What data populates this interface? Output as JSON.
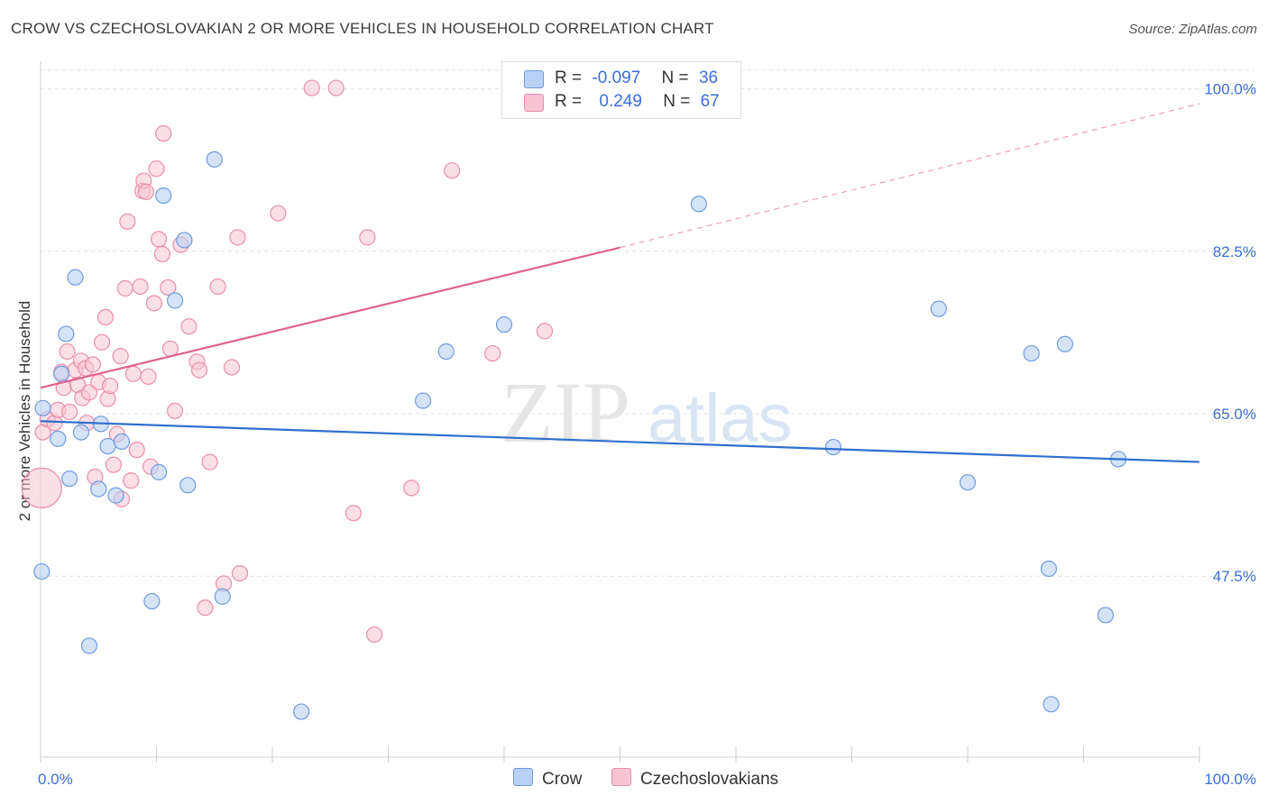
{
  "title": "CROW VS CZECHOSLOVAKIAN 2 OR MORE VEHICLES IN HOUSEHOLD CORRELATION CHART",
  "source": "Source: ZipAtlas.com",
  "watermark": {
    "zip": "ZIP",
    "atlas": "atlas"
  },
  "legend": {
    "rows": [
      {
        "r_label": "R =",
        "r_value": "-0.097",
        "n_label": "N =",
        "n_value": "36"
      },
      {
        "r_label": "R =",
        "r_value": "0.249",
        "n_label": "N =",
        "n_value": "67"
      }
    ]
  },
  "bottom_legend": {
    "crow": "Crow",
    "czech": "Czechoslovakians"
  },
  "colors": {
    "crow_fill": "#b9d1f4",
    "crow_stroke": "#6f9be0",
    "crow_line": "#2f6fcd",
    "czech_fill": "#f7c4d4",
    "czech_stroke": "#ea8fac",
    "czech_line": "#e0628d",
    "axis_text": "#3a6fd8",
    "grid": "#e3e3e3"
  },
  "chart_data": {
    "type": "scatter",
    "title": "CROW VS CZECHOSLOVAKIAN 2 OR MORE VEHICLES IN HOUSEHOLD CORRELATION CHART",
    "xlabel": "",
    "ylabel": "2 or more Vehicles in Household",
    "xlim": [
      0,
      100
    ],
    "ylim": [
      28.0,
      102.0
    ],
    "x_tick_labels": [
      "0.0%",
      "100.0%"
    ],
    "y_ticks": [
      47.5,
      65.0,
      82.5,
      100.0
    ],
    "y_tick_labels": [
      "47.5%",
      "65.0%",
      "82.5%",
      "100.0%"
    ],
    "series": [
      {
        "name": "Crow",
        "R": -0.097,
        "N": 36,
        "trend": {
          "x0": 0,
          "y0": 64.2,
          "x1": 100,
          "y1": 59.8
        },
        "points": [
          {
            "x": 0.1,
            "y": 48.0
          },
          {
            "x": 0.2,
            "y": 65.6
          },
          {
            "x": 1.5,
            "y": 62.3
          },
          {
            "x": 1.8,
            "y": 69.3
          },
          {
            "x": 2.2,
            "y": 73.6
          },
          {
            "x": 2.5,
            "y": 58.0
          },
          {
            "x": 3.0,
            "y": 79.7
          },
          {
            "x": 3.5,
            "y": 63.0
          },
          {
            "x": 4.2,
            "y": 40.0
          },
          {
            "x": 5.0,
            "y": 56.9
          },
          {
            "x": 5.2,
            "y": 63.9
          },
          {
            "x": 5.8,
            "y": 61.5
          },
          {
            "x": 6.5,
            "y": 56.2
          },
          {
            "x": 7.0,
            "y": 62.0
          },
          {
            "x": 9.6,
            "y": 44.8
          },
          {
            "x": 10.2,
            "y": 58.7
          },
          {
            "x": 10.6,
            "y": 88.5
          },
          {
            "x": 11.6,
            "y": 77.2
          },
          {
            "x": 12.4,
            "y": 83.7
          },
          {
            "x": 12.7,
            "y": 57.3
          },
          {
            "x": 15.0,
            "y": 92.4
          },
          {
            "x": 15.7,
            "y": 45.3
          },
          {
            "x": 22.5,
            "y": 32.9
          },
          {
            "x": 33.0,
            "y": 66.4
          },
          {
            "x": 35.0,
            "y": 71.7
          },
          {
            "x": 40.0,
            "y": 74.6
          },
          {
            "x": 56.8,
            "y": 87.6
          },
          {
            "x": 68.4,
            "y": 61.4
          },
          {
            "x": 77.5,
            "y": 76.3
          },
          {
            "x": 80.0,
            "y": 57.6
          },
          {
            "x": 85.5,
            "y": 71.5
          },
          {
            "x": 87.0,
            "y": 48.3
          },
          {
            "x": 88.4,
            "y": 72.5
          },
          {
            "x": 91.9,
            "y": 43.3
          },
          {
            "x": 93.0,
            "y": 60.1
          },
          {
            "x": 87.2,
            "y": 33.7
          }
        ]
      },
      {
        "name": "Czechoslovakians",
        "R": 0.249,
        "N": 67,
        "trend": {
          "x0": 0,
          "y0": 67.8,
          "x1": 50,
          "y1": 82.9
        },
        "trend_dashed": {
          "x0": 50,
          "y0": 82.9,
          "x1": 100,
          "y1": 98.4
        },
        "points": [
          {
            "x": 0.1,
            "y": 57.0,
            "size": "large"
          },
          {
            "x": 0.2,
            "y": 63.0
          },
          {
            "x": 0.6,
            "y": 64.4
          },
          {
            "x": 1.2,
            "y": 64.0
          },
          {
            "x": 1.5,
            "y": 65.4
          },
          {
            "x": 1.8,
            "y": 69.5
          },
          {
            "x": 2.0,
            "y": 67.8
          },
          {
            "x": 2.3,
            "y": 71.7
          },
          {
            "x": 2.5,
            "y": 65.2
          },
          {
            "x": 3.0,
            "y": 69.7
          },
          {
            "x": 3.2,
            "y": 68.1
          },
          {
            "x": 3.5,
            "y": 70.7
          },
          {
            "x": 3.6,
            "y": 66.7
          },
          {
            "x": 3.9,
            "y": 69.9
          },
          {
            "x": 4.2,
            "y": 67.3
          },
          {
            "x": 4.5,
            "y": 70.3
          },
          {
            "x": 4.7,
            "y": 58.2
          },
          {
            "x": 5.0,
            "y": 68.4
          },
          {
            "x": 5.3,
            "y": 72.7
          },
          {
            "x": 5.6,
            "y": 75.4
          },
          {
            "x": 5.8,
            "y": 66.6
          },
          {
            "x": 6.3,
            "y": 59.5
          },
          {
            "x": 6.6,
            "y": 62.8
          },
          {
            "x": 6.9,
            "y": 71.2
          },
          {
            "x": 7.0,
            "y": 55.8
          },
          {
            "x": 7.3,
            "y": 78.5
          },
          {
            "x": 7.5,
            "y": 85.7
          },
          {
            "x": 7.8,
            "y": 57.8
          },
          {
            "x": 8.0,
            "y": 69.3
          },
          {
            "x": 8.3,
            "y": 61.1
          },
          {
            "x": 8.6,
            "y": 78.7
          },
          {
            "x": 8.8,
            "y": 89.0
          },
          {
            "x": 8.9,
            "y": 90.1
          },
          {
            "x": 9.1,
            "y": 88.9
          },
          {
            "x": 9.5,
            "y": 59.3
          },
          {
            "x": 9.8,
            "y": 76.9
          },
          {
            "x": 10.0,
            "y": 91.4
          },
          {
            "x": 10.2,
            "y": 83.8
          },
          {
            "x": 10.5,
            "y": 82.2
          },
          {
            "x": 10.6,
            "y": 95.2
          },
          {
            "x": 11.0,
            "y": 78.6
          },
          {
            "x": 11.6,
            "y": 65.3
          },
          {
            "x": 12.1,
            "y": 83.2
          },
          {
            "x": 12.8,
            "y": 74.4
          },
          {
            "x": 13.5,
            "y": 70.6
          },
          {
            "x": 13.7,
            "y": 69.7
          },
          {
            "x": 14.2,
            "y": 44.1
          },
          {
            "x": 14.6,
            "y": 59.8
          },
          {
            "x": 15.3,
            "y": 78.7
          },
          {
            "x": 15.8,
            "y": 46.7
          },
          {
            "x": 16.5,
            "y": 70.0
          },
          {
            "x": 17.0,
            "y": 84.0
          },
          {
            "x": 17.2,
            "y": 47.8
          },
          {
            "x": 20.5,
            "y": 86.6
          },
          {
            "x": 23.4,
            "y": 100.1
          },
          {
            "x": 25.5,
            "y": 100.1
          },
          {
            "x": 27.0,
            "y": 54.3
          },
          {
            "x": 28.2,
            "y": 84.0
          },
          {
            "x": 28.8,
            "y": 41.2
          },
          {
            "x": 32.0,
            "y": 57.0
          },
          {
            "x": 35.5,
            "y": 91.2
          },
          {
            "x": 39.0,
            "y": 71.5
          },
          {
            "x": 43.5,
            "y": 73.9
          },
          {
            "x": 11.2,
            "y": 72.0
          },
          {
            "x": 4.0,
            "y": 64.0
          },
          {
            "x": 6.0,
            "y": 68.0
          },
          {
            "x": 9.3,
            "y": 69.0
          }
        ]
      }
    ]
  }
}
